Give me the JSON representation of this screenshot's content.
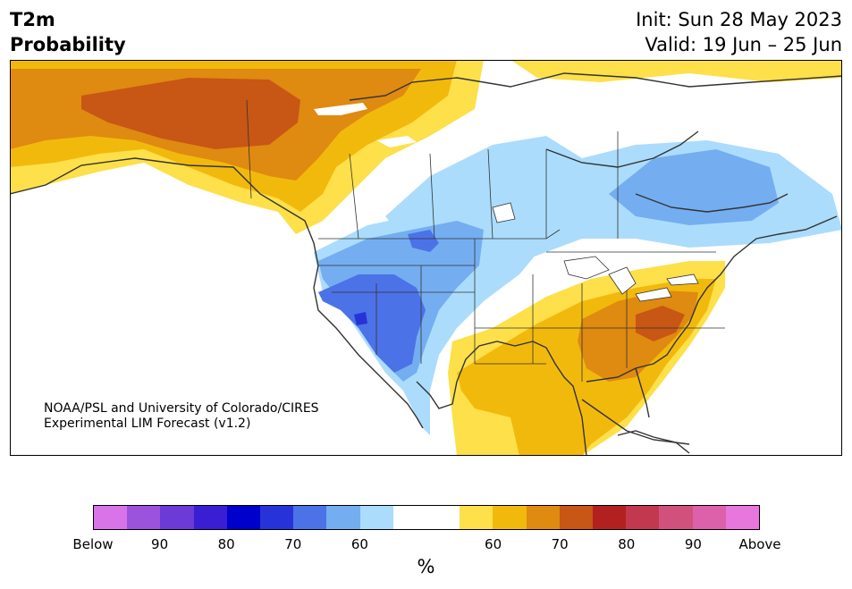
{
  "title": {
    "line1": "T2m",
    "line2": "Probability"
  },
  "forecast": {
    "init": "Init: Sun 28 May 2023",
    "valid": "Valid: 19 Jun – 25 Jun"
  },
  "credit": {
    "line1": "NOAA/PSL and University of Colorado/CIRES",
    "line2": "Experimental LIM Forecast (v1.2)"
  },
  "colorbar": {
    "colors": [
      "#d974e8",
      "#9b52dd",
      "#6b3ad7",
      "#3a1ed4",
      "#0000cd",
      "#2733d8",
      "#4c72e7",
      "#74aef0",
      "#abdcfc",
      "#ffffff",
      "#ffffff",
      "#fde04a",
      "#f2b90d",
      "#df8a10",
      "#c85615",
      "#b32020",
      "#c2384f",
      "#d0517c",
      "#dc61aa",
      "#e777dc"
    ],
    "ticks": [
      {
        "label": "Below",
        "index": 0
      },
      {
        "label": "90",
        "index": 2
      },
      {
        "label": "80",
        "index": 4
      },
      {
        "label": "70",
        "index": 6
      },
      {
        "label": "60",
        "index": 8
      },
      {
        "label": "60",
        "index": 12
      },
      {
        "label": "70",
        "index": 14
      },
      {
        "label": "80",
        "index": 16
      },
      {
        "label": "90",
        "index": 18
      },
      {
        "label": "Above",
        "index": 20
      }
    ],
    "unit": "%"
  },
  "map_colors": {
    "below_50": "#abdcfc",
    "below_60": "#74aef0",
    "below_70": "#4c72e7",
    "below_80": "#2733d8",
    "above_50": "#fde04a",
    "above_60": "#f2b90d",
    "above_70": "#df8a10",
    "above_80": "#c85615"
  }
}
